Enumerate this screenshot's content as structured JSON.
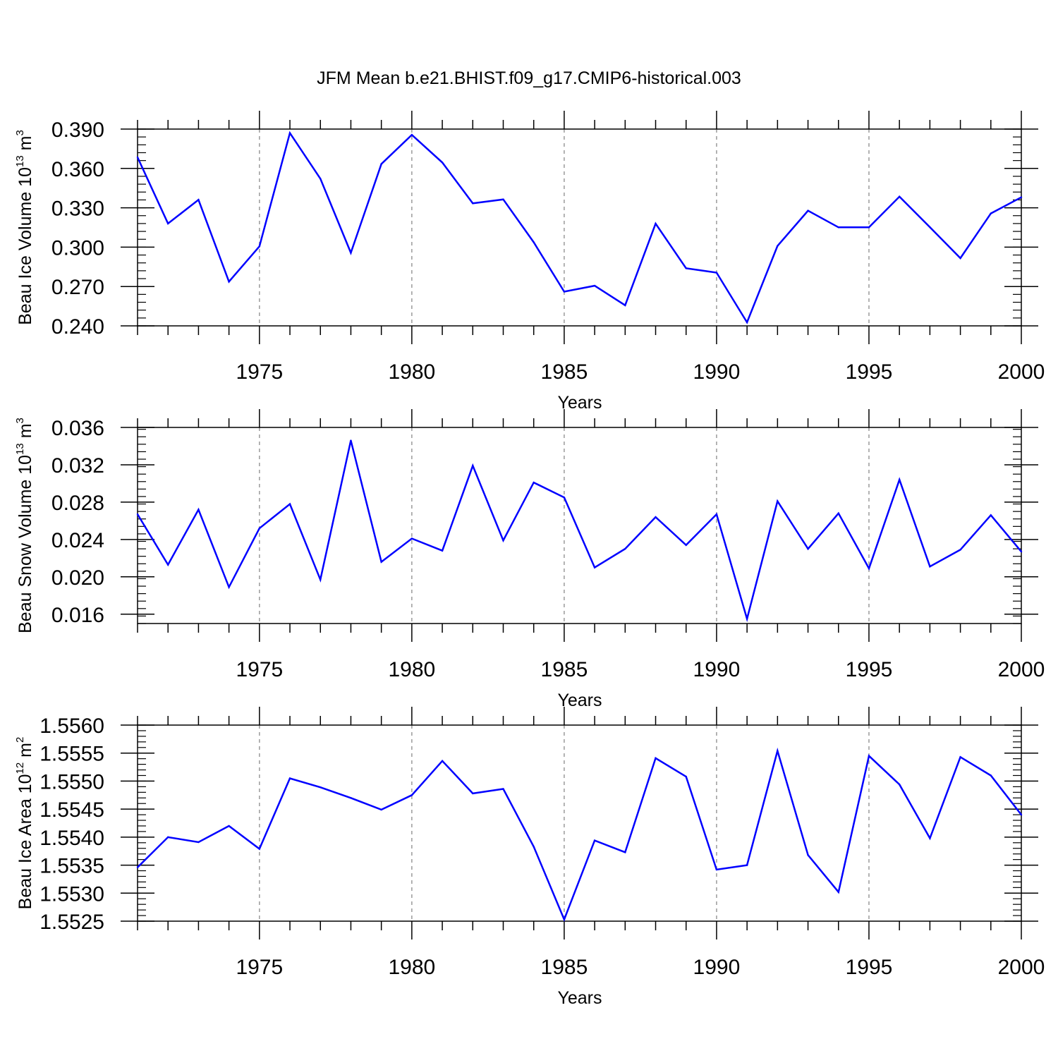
{
  "title": "JFM Mean b.e21.BHIST.f09_g17.CMIP6-historical.003",
  "colors": {
    "line": "#0000ff",
    "axis": "#000000",
    "grid": "#9a9a9a"
  },
  "chart_data": [
    {
      "type": "line",
      "ylabel": {
        "main": "Beau Ice Volume 10",
        "exp": "13",
        "unit": " m",
        "unit_exp": "3"
      },
      "xlabel": "Years",
      "xlim": [
        1971,
        2000
      ],
      "xticks": [
        1975,
        1980,
        1985,
        1990,
        1995,
        2000
      ],
      "xtick_labels": [
        "1975",
        "1980",
        "1985",
        "1990",
        "1995",
        "2000"
      ],
      "ylim": [
        0.24,
        0.39
      ],
      "yticks": [
        0.24,
        0.27,
        0.3,
        0.33,
        0.36,
        0.39
      ],
      "ytick_labels": [
        "0.240",
        "0.270",
        "0.300",
        "0.330",
        "0.360",
        "0.390"
      ],
      "series": [
        {
          "name": "Beau Ice Volume",
          "x": [
            1971,
            1972,
            1973,
            1974,
            1975,
            1976,
            1977,
            1978,
            1979,
            1980,
            1981,
            1982,
            1983,
            1984,
            1985,
            1986,
            1987,
            1988,
            1989,
            1990,
            1991,
            1992,
            1993,
            1994,
            1995,
            1996,
            1997,
            1998,
            1999,
            2000
          ],
          "values": [
            0.3685,
            0.318,
            0.3361,
            0.2737,
            0.3006,
            0.387,
            0.3522,
            0.2957,
            0.3634,
            0.3856,
            0.3645,
            0.3334,
            0.3364,
            0.3037,
            0.2661,
            0.2706,
            0.2557,
            0.3179,
            0.2839,
            0.2806,
            0.2427,
            0.3009,
            0.3278,
            0.3151,
            0.3151,
            0.3385,
            0.3152,
            0.2916,
            0.3257,
            0.338
          ]
        }
      ]
    },
    {
      "type": "line",
      "ylabel": {
        "main": "Beau Snow Volume 10",
        "exp": "13",
        "unit": " m",
        "unit_exp": "3"
      },
      "xlabel": "Years",
      "xlim": [
        1971,
        2000
      ],
      "xticks": [
        1975,
        1980,
        1985,
        1990,
        1995,
        2000
      ],
      "xtick_labels": [
        "1975",
        "1980",
        "1985",
        "1990",
        "1995",
        "2000"
      ],
      "ylim": [
        0.015,
        0.036
      ],
      "yticks": [
        0.016,
        0.02,
        0.024,
        0.028,
        0.032,
        0.036
      ],
      "ytick_labels": [
        "0.016",
        "0.020",
        "0.024",
        "0.028",
        "0.032",
        "0.036"
      ],
      "series": [
        {
          "name": "Beau Snow Volume",
          "x": [
            1971,
            1972,
            1973,
            1974,
            1975,
            1976,
            1977,
            1978,
            1979,
            1980,
            1981,
            1982,
            1983,
            1984,
            1985,
            1986,
            1987,
            1988,
            1989,
            1990,
            1991,
            1992,
            1993,
            1994,
            1995,
            1996,
            1997,
            1998,
            1999,
            2000
          ],
          "values": [
            0.0267,
            0.0213,
            0.0272,
            0.0189,
            0.0252,
            0.0278,
            0.0197,
            0.0346,
            0.0216,
            0.0241,
            0.0228,
            0.0319,
            0.0239,
            0.0301,
            0.0285,
            0.021,
            0.023,
            0.0264,
            0.0234,
            0.0267,
            0.0155,
            0.0281,
            0.023,
            0.0268,
            0.0209,
            0.0304,
            0.0211,
            0.0229,
            0.0266,
            0.0227
          ]
        }
      ]
    },
    {
      "type": "line",
      "ylabel": {
        "main": "Beau Ice Area 10",
        "exp": "12",
        "unit": " m",
        "unit_exp": "2"
      },
      "xlabel": "Years",
      "xlim": [
        1971,
        2000
      ],
      "xticks": [
        1975,
        1980,
        1985,
        1990,
        1995,
        2000
      ],
      "xtick_labels": [
        "1975",
        "1980",
        "1985",
        "1990",
        "1995",
        "2000"
      ],
      "ylim": [
        1.5525,
        1.556
      ],
      "yticks": [
        1.5525,
        1.553,
        1.5535,
        1.554,
        1.5545,
        1.555,
        1.5555,
        1.556
      ],
      "ytick_labels": [
        "1.5525",
        "1.5530",
        "1.5535",
        "1.5540",
        "1.5545",
        "1.5550",
        "1.5555",
        "1.5560"
      ],
      "series": [
        {
          "name": "Beau Ice Area",
          "x": [
            1971,
            1972,
            1973,
            1974,
            1975,
            1976,
            1977,
            1978,
            1979,
            1980,
            1981,
            1982,
            1983,
            1984,
            1985,
            1986,
            1987,
            1988,
            1989,
            1990,
            1991,
            1992,
            1993,
            1994,
            1995,
            1996,
            1997,
            1998,
            1999,
            2000
          ],
          "values": [
            1.55346,
            1.554,
            1.55391,
            1.5542,
            1.55379,
            1.55505,
            1.55489,
            1.5547,
            1.55449,
            1.55475,
            1.55536,
            1.55478,
            1.55486,
            1.55383,
            1.55253,
            1.55394,
            1.55373,
            1.55541,
            1.55508,
            1.55342,
            1.5535,
            1.55554,
            1.55368,
            1.55302,
            1.55545,
            1.55494,
            1.55398,
            1.55543,
            1.5551,
            1.5544
          ]
        }
      ]
    }
  ]
}
